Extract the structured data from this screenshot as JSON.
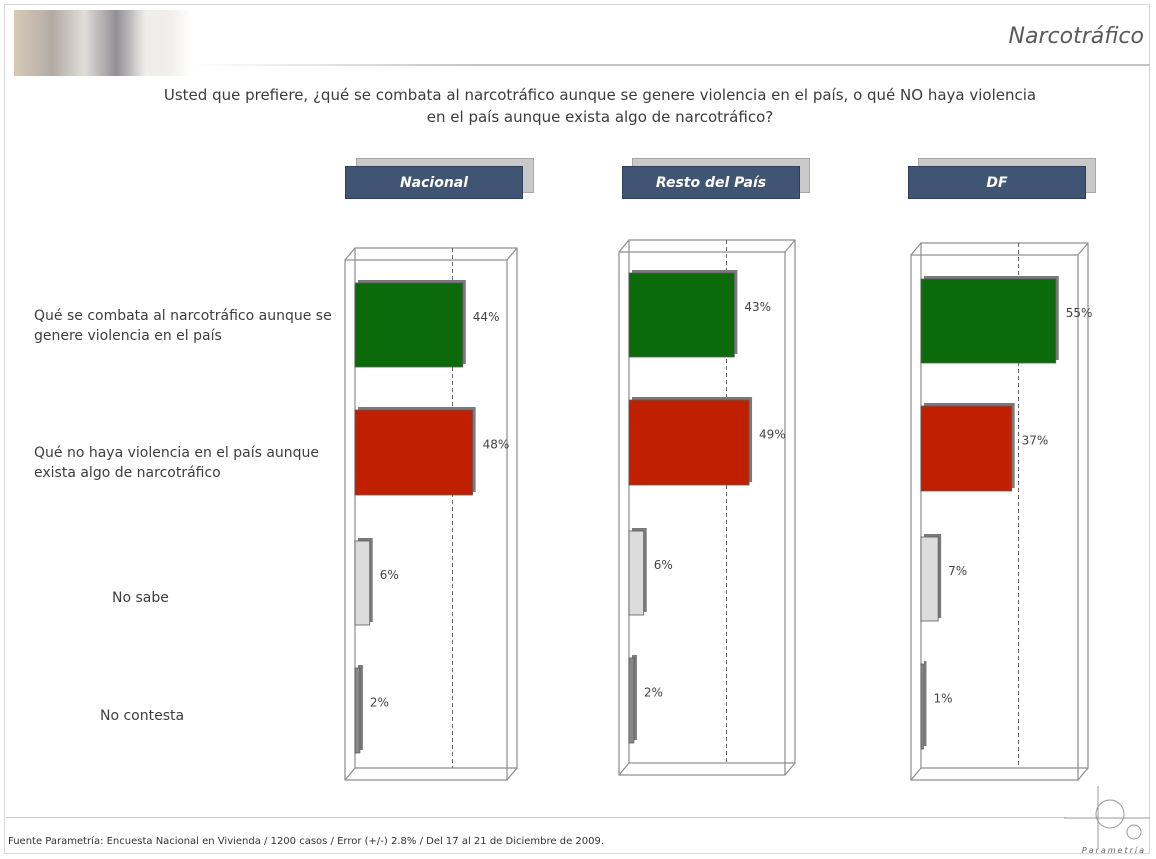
{
  "header": {
    "topic": "Narcotráfico",
    "question": "Usted que prefiere, ¿qué se combata al narcotráfico aunque se genere violencia en el país, o qué NO haya violencia en el país aunque exista algo de narcotráfico?"
  },
  "rows": [
    {
      "label": "Qué se combata al narcotráfico aunque se genere violencia en el país"
    },
    {
      "label": "Qué no haya violencia en el país aunque exista algo de narcotráfico"
    },
    {
      "label": "No sabe"
    },
    {
      "label": "No contesta"
    }
  ],
  "chart_data": [
    {
      "type": "bar",
      "title": "Nacional",
      "categories": [
        "Qué se combata al narcotráfico aunque se genere violencia en el país",
        "Qué no haya violencia en el país aunque exista algo de narcotráfico",
        "No sabe",
        "No contesta"
      ],
      "values": [
        44,
        48,
        6,
        2
      ],
      "value_labels": [
        "44%",
        "48%",
        "6%",
        "2%"
      ],
      "colors": [
        "#0b6b0b",
        "#c02000",
        "#dcdcdc",
        "#888888"
      ]
    },
    {
      "type": "bar",
      "title": "Resto del País",
      "categories": [
        "Qué se combata al narcotráfico aunque se genere violencia en el país",
        "Qué no haya violencia en el país aunque exista algo de narcotráfico",
        "No sabe",
        "No contesta"
      ],
      "values": [
        43,
        49,
        6,
        2
      ],
      "value_labels": [
        "43%",
        "49%",
        "6%",
        "2%"
      ],
      "colors": [
        "#0b6b0b",
        "#c02000",
        "#dcdcdc",
        "#888888"
      ]
    },
    {
      "type": "bar",
      "title": "DF",
      "categories": [
        "Qué se combata al narcotráfico aunque se genere violencia en el país",
        "Qué no haya violencia en el país aunque exista algo de narcotráfico",
        "No sabe",
        "No contesta"
      ],
      "values": [
        55,
        37,
        7,
        1
      ],
      "value_labels": [
        "55%",
        "37%",
        "7%",
        "1%"
      ],
      "colors": [
        "#0b6b0b",
        "#c02000",
        "#dcdcdc",
        "#888888"
      ]
    }
  ],
  "footer": {
    "source": "Fuente Parametría: Encuesta Nacional en Vivienda / 1200 casos / Error (+/-) 2.8% / Del 17 al 21 de Diciembre de 2009.",
    "logo": "Parametría"
  }
}
